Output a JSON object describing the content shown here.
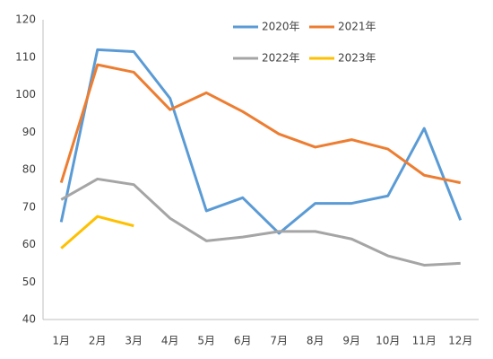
{
  "chart_data": {
    "type": "line",
    "categories": [
      "1月",
      "2月",
      "3月",
      "4月",
      "5月",
      "6月",
      "7月",
      "8月",
      "9月",
      "10月",
      "11月",
      "12月"
    ],
    "series": [
      {
        "name": "2020年",
        "color": "#5b9bd5",
        "values": [
          66,
          112,
          111.5,
          99,
          69,
          72.5,
          63,
          71,
          71,
          73,
          91,
          66.5
        ]
      },
      {
        "name": "2021年",
        "color": "#ed7d31",
        "values": [
          76.5,
          108,
          106,
          96,
          100.5,
          95.5,
          89.5,
          86,
          88,
          85.5,
          78.5,
          76.5
        ]
      },
      {
        "name": "2022年",
        "color": "#a5a5a5",
        "values": [
          72,
          77.5,
          76,
          67,
          61,
          62,
          63.5,
          63.5,
          61.5,
          57,
          54.5,
          55
        ]
      },
      {
        "name": "2023年",
        "color": "#ffc000",
        "values": [
          59,
          67.5,
          65,
          null,
          null,
          null,
          null,
          null,
          null,
          null,
          null,
          null
        ]
      }
    ],
    "ylim": [
      40,
      120
    ],
    "yticks": [
      40,
      50,
      60,
      70,
      80,
      90,
      100,
      110,
      120
    ],
    "grid": false
  }
}
